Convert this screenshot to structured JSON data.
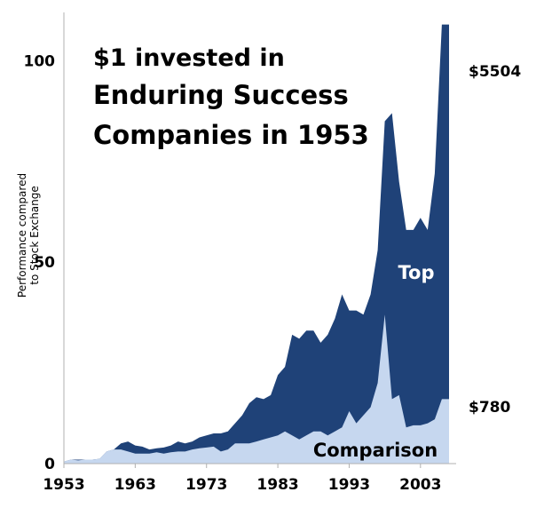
{
  "chart_data": {
    "type": "area",
    "title_lines": [
      "$1 invested in",
      "Enduring Success",
      "Companies in 1953"
    ],
    "ylabel_lines": [
      "Performance compared",
      "to Stock Exchange"
    ],
    "xlim": [
      1953,
      2008
    ],
    "ylim": [
      0,
      112
    ],
    "x_ticks": [
      "1953",
      "1963",
      "1973",
      "1983",
      "1993",
      "2003"
    ],
    "y_ticks": [
      "0",
      "50",
      "100"
    ],
    "x": [
      1953,
      1954,
      1955,
      1956,
      1957,
      1958,
      1959,
      1960,
      1961,
      1962,
      1963,
      1964,
      1965,
      1966,
      1967,
      1968,
      1969,
      1970,
      1971,
      1972,
      1973,
      1974,
      1975,
      1976,
      1977,
      1978,
      1979,
      1980,
      1981,
      1982,
      1983,
      1984,
      1985,
      1986,
      1987,
      1988,
      1989,
      1990,
      1991,
      1992,
      1993,
      1994,
      1995,
      1996,
      1997,
      1998,
      1999,
      2000,
      2001,
      2002,
      2003,
      2004,
      2005,
      2006,
      2007
    ],
    "series": [
      {
        "name": "Top",
        "color": "#1f4278",
        "values": [
          0.5,
          1,
          1,
          1,
          1,
          1.2,
          3,
          3.5,
          5,
          5.5,
          4.5,
          4.2,
          3.5,
          3.8,
          4,
          4.5,
          5.5,
          5,
          5.5,
          6.5,
          7,
          7.5,
          7.5,
          8,
          10,
          12,
          15,
          16.5,
          16,
          17,
          22,
          24,
          32,
          31,
          33,
          33,
          30,
          32,
          36,
          42,
          38,
          38,
          37,
          42,
          53,
          85,
          87,
          70,
          58,
          58,
          61,
          58,
          72,
          109,
          109
        ]
      },
      {
        "name": "Comparison",
        "color": "#c6d7ef",
        "values": [
          0.5,
          1,
          0.8,
          1,
          1,
          1.2,
          3,
          3.5,
          3.5,
          3,
          2.5,
          2.5,
          2.5,
          2.8,
          2.5,
          2.8,
          3,
          3,
          3.5,
          3.8,
          4,
          4.2,
          3,
          3.5,
          5,
          5,
          5,
          5.5,
          6,
          6.5,
          7,
          8,
          7,
          6,
          7,
          8,
          8,
          7,
          8,
          9,
          13,
          10,
          12,
          14,
          20,
          37,
          16,
          17,
          9,
          9.5,
          9.5,
          10,
          11,
          16,
          16
        ]
      }
    ],
    "end_labels": [
      "$5504",
      "$780"
    ]
  }
}
